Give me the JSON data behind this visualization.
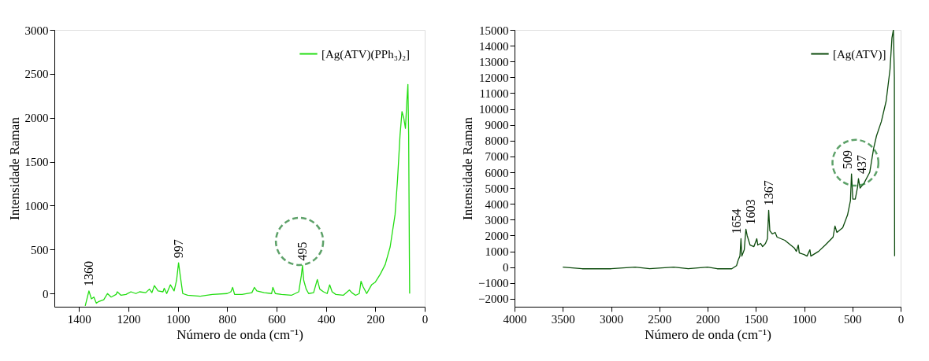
{
  "chart_data": [
    {
      "type": "line",
      "xlabel": "Número de onda (cm⁻¹)",
      "ylabel": "Intensidade Raman",
      "legend": "top right",
      "x": [
        1375,
        1360,
        1350,
        1340,
        1330,
        1320,
        1300,
        1285,
        1270,
        1250,
        1245,
        1230,
        1210,
        1190,
        1170,
        1155,
        1130,
        1115,
        1105,
        1095,
        1080,
        1060,
        1055,
        1045,
        1030,
        1015,
        1005,
        997,
        990,
        980,
        960,
        910,
        860,
        800,
        785,
        778,
        770,
        740,
        700,
        690,
        680,
        650,
        620,
        615,
        605,
        580,
        540,
        510,
        500,
        495,
        490,
        480,
        470,
        450,
        435,
        425,
        410,
        395,
        385,
        375,
        360,
        330,
        305,
        295,
        280,
        265,
        258,
        250,
        235,
        225,
        215,
        200,
        180,
        160,
        140,
        120,
        110,
        100,
        92,
        85,
        78,
        72,
        68,
        65,
        62,
        61
      ],
      "series": [
        {
          "name": "[Ag(ATV)(PPh₃)₂]",
          "color": "#22dd11",
          "values": [
            -140,
            30,
            -60,
            -40,
            -110,
            -90,
            -70,
            0,
            -40,
            -10,
            20,
            -20,
            -10,
            20,
            0,
            20,
            10,
            50,
            10,
            90,
            30,
            20,
            60,
            0,
            100,
            30,
            150,
            350,
            200,
            0,
            -20,
            -30,
            -10,
            0,
            20,
            70,
            -10,
            -10,
            10,
            70,
            30,
            10,
            0,
            70,
            0,
            -10,
            -20,
            20,
            200,
            320,
            150,
            50,
            0,
            10,
            160,
            50,
            20,
            0,
            100,
            20,
            -10,
            -20,
            40,
            10,
            -20,
            0,
            140,
            80,
            0,
            50,
            100,
            130,
            220,
            330,
            530,
            900,
            1300,
            1800,
            2070,
            2000,
            1880,
            2200,
            2380,
            1800,
            400,
            0
          ]
        }
      ],
      "xlim": [
        1500,
        0
      ],
      "xticks": [
        1400,
        1200,
        1000,
        800,
        600,
        400,
        200,
        0
      ],
      "ylim": [
        -150,
        3000
      ],
      "yticks": [
        0,
        500,
        1000,
        1500,
        2000,
        2500,
        3000
      ],
      "annotations": [
        {
          "text": "1360",
          "x": 1360,
          "y": 30
        },
        {
          "text": "997",
          "x": 997,
          "y": 350
        },
        {
          "text": "495",
          "x": 495,
          "y": 320
        }
      ]
    },
    {
      "type": "line",
      "xlabel": "Número de onda (cm⁻¹)",
      "ylabel": "Intensidade Raman",
      "legend": "top right",
      "x": [
        3500,
        3300,
        3000,
        2750,
        2600,
        2350,
        2200,
        2000,
        1900,
        1750,
        1700,
        1680,
        1665,
        1654,
        1645,
        1620,
        1603,
        1590,
        1560,
        1520,
        1490,
        1480,
        1450,
        1430,
        1400,
        1380,
        1367,
        1355,
        1330,
        1300,
        1280,
        1200,
        1100,
        1080,
        1060,
        1050,
        1000,
        970,
        940,
        930,
        850,
        780,
        700,
        680,
        660,
        600,
        550,
        520,
        509,
        495,
        470,
        445,
        437,
        420,
        380,
        320,
        280,
        250,
        200,
        150,
        110,
        90,
        75,
        65,
        62
      ],
      "series": [
        {
          "name": "[Ag(ATV)]",
          "color": "#0b4a0b",
          "values": [
            0,
            -100,
            -100,
            0,
            -100,
            0,
            -100,
            0,
            -100,
            -100,
            100,
            500,
            700,
            1800,
            700,
            1100,
            2400,
            2000,
            1400,
            1300,
            1800,
            1400,
            1500,
            1300,
            1500,
            1800,
            3600,
            2300,
            2100,
            2200,
            1900,
            1700,
            1200,
            1000,
            1400,
            900,
            800,
            700,
            1100,
            700,
            1000,
            1400,
            1900,
            2600,
            2200,
            2500,
            3300,
            4200,
            5900,
            4300,
            4300,
            5100,
            5600,
            5000,
            5300,
            6000,
            7500,
            8300,
            9200,
            10500,
            12500,
            14500,
            15000,
            12000,
            700
          ]
        }
      ],
      "xlim": [
        4000,
        0
      ],
      "xticks": [
        4000,
        3500,
        3000,
        2500,
        2000,
        1500,
        1000,
        500,
        0
      ],
      "ylim": [
        -2500,
        15000
      ],
      "yticks": [
        -2000,
        -1000,
        0,
        1000,
        2000,
        3000,
        4000,
        5000,
        6000,
        7000,
        8000,
        9000,
        10000,
        11000,
        12000,
        13000,
        14000,
        15000
      ],
      "annotations": [
        {
          "text": "1654",
          "x": 1654,
          "y": 1800
        },
        {
          "text": "1603",
          "x": 1603,
          "y": 2400
        },
        {
          "text": "1367",
          "x": 1367,
          "y": 3600
        },
        {
          "text": "509",
          "x": 509,
          "y": 5900
        },
        {
          "text": "437",
          "x": 437,
          "y": 5600
        }
      ]
    }
  ]
}
